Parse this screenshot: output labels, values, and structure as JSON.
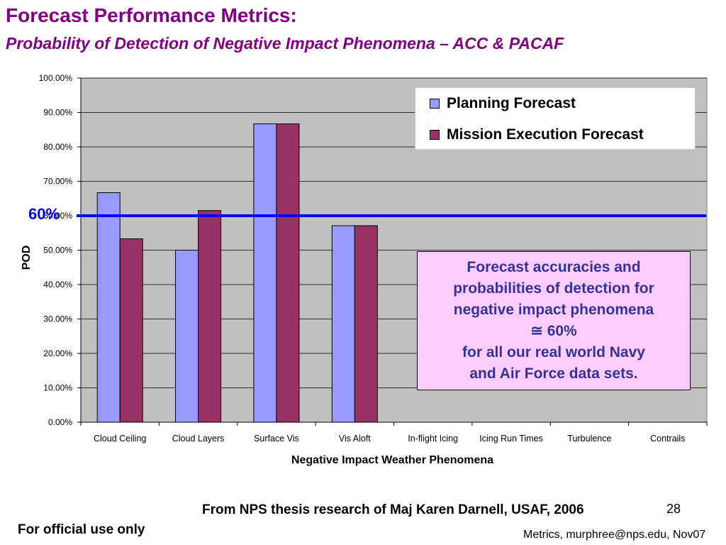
{
  "slide": {
    "title": "Forecast Performance Metrics:",
    "subtitle": "Probability of Detection of Negative Impact Phenomena – ACC & PACAF",
    "reference_label": "60%",
    "callout_lines": [
      "Forecast accuracies and",
      "probabilities of detection for",
      "negative impact phenomena",
      "≅ 60%",
      "for all our real world Navy",
      "and Air Force data sets."
    ],
    "source": "From NPS thesis research of Maj Karen Darnell, USAF, 2006",
    "page_number": "28",
    "disclaimer": "For official use only",
    "footer_contact": "Metrics, murphree@nps.edu, Nov07"
  },
  "chart_data": {
    "type": "bar",
    "title": "",
    "xlabel": "Negative Impact Weather Phenomena",
    "ylabel": "POD",
    "ylim": [
      0,
      100
    ],
    "yticks": [
      "0.00%",
      "10.00%",
      "20.00%",
      "30.00%",
      "40.00%",
      "50.00%",
      "60.00%",
      "70.00%",
      "80.00%",
      "90.00%",
      "100.00%"
    ],
    "categories": [
      "Cloud Ceiling",
      "Cloud Layers",
      "Surface Vis",
      "Vis Aloft",
      "In-flight Icing",
      "Icing Run Times",
      "Turbulence",
      "Contrails"
    ],
    "series": [
      {
        "name": "Planning Forecast",
        "color": "#9999ff",
        "values": [
          66.7,
          50.0,
          86.7,
          57.1,
          0,
          0,
          0,
          0
        ]
      },
      {
        "name": "Mission Execution Forecast",
        "color": "#993366",
        "values": [
          53.3,
          61.5,
          86.7,
          57.1,
          0,
          0,
          0,
          0
        ]
      }
    ],
    "reference_line": {
      "value": 60,
      "color": "#0000ff"
    },
    "grid": true,
    "plot_background": "#c0c0c0",
    "legend": "top-right"
  }
}
